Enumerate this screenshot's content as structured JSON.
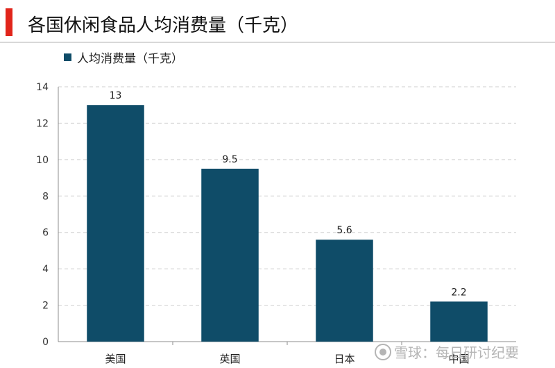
{
  "page": {
    "title": "各国休闲食品人均消费量（千克）"
  },
  "legend": {
    "label": "人均消费量（千克）",
    "color": "#0f4c68"
  },
  "watermark": {
    "text": "雪球：每日研讨纪要",
    "icon": "snowball-icon"
  },
  "chart_data": {
    "type": "bar",
    "categories": [
      "美国",
      "英国",
      "日本",
      "中国"
    ],
    "series": [
      {
        "name": "人均消费量（千克）",
        "values": [
          13,
          9.5,
          5.6,
          2.2
        ],
        "color": "#0f4c68"
      }
    ],
    "data_labels": [
      "13",
      "9.5",
      "5.6",
      "2.2"
    ],
    "y_ticks": [
      0,
      2,
      4,
      6,
      8,
      10,
      12,
      14
    ],
    "ylim": [
      0,
      14
    ],
    "grid": true,
    "legend_position": "top-left"
  }
}
